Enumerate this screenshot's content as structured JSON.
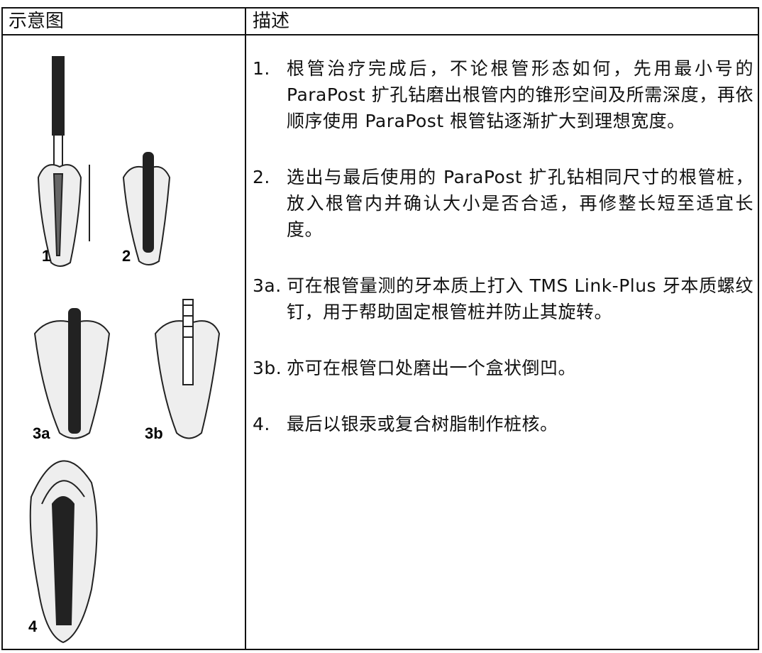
{
  "table": {
    "headers": [
      "示意图",
      "描述"
    ],
    "figure_labels": [
      "1",
      "2",
      "3a",
      "3b",
      "4"
    ],
    "steps": [
      {
        "number": "1.",
        "text": "根管治疗完成后，不论根管形态如何，先用最小号的 ParaPost 扩孔钻磨出根管内的锥形空间及所需深度，再依顺序使用 ParaPost 根管钻逐渐扩大到理想宽度。"
      },
      {
        "number": "2.",
        "text": "选出与最后使用的 ParaPost 扩孔钻相同尺寸的根管桩，放入根管内并确认大小是否合适，再修整长短至适宜长度。"
      },
      {
        "number": "3a.",
        "text": "可在根管量测的牙本质上打入 TMS Link-Plus 牙本质螺纹钉，用于帮助固定根管桩并防止其旋转。"
      },
      {
        "number": "3b.",
        "text": "亦可在根管口处磨出一个盒状倒凹。"
      },
      {
        "number": "4.",
        "text": "最后以银汞或复合树脂制作桩核。"
      }
    ]
  }
}
